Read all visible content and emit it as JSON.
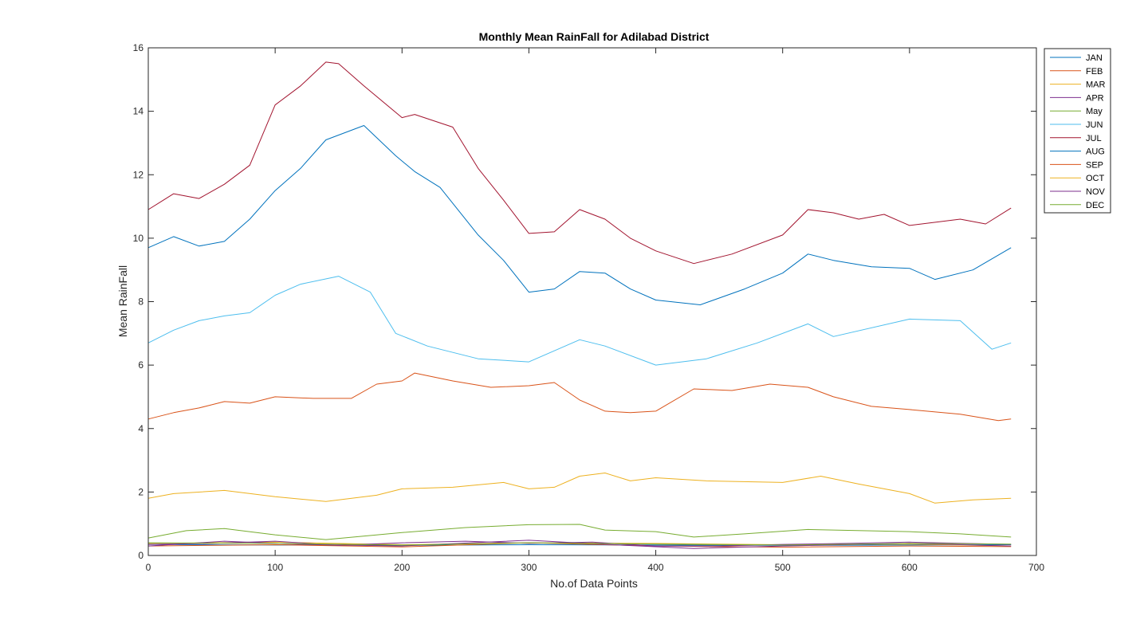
{
  "chart_data": {
    "type": "line",
    "title": "Monthly Mean RainFall  for Adilabad District",
    "xlabel": "No.of Data Points",
    "ylabel": "Mean RainFall",
    "xlim": [
      0,
      700
    ],
    "ylim": [
      0,
      16
    ],
    "xticks": [
      0,
      100,
      200,
      300,
      400,
      500,
      600,
      700
    ],
    "yticks": [
      0,
      2,
      4,
      6,
      8,
      10,
      12,
      14,
      16
    ],
    "grid": false,
    "legend": "outside-top-right",
    "series": [
      {
        "name": "JAN",
        "color": "#0072BD",
        "x": [
          0,
          100,
          200,
          300,
          400,
          500,
          600,
          680
        ],
        "y": [
          0.35,
          0.33,
          0.32,
          0.34,
          0.33,
          0.32,
          0.33,
          0.34
        ]
      },
      {
        "name": "FEB",
        "color": "#D95319",
        "x": [
          0,
          100,
          200,
          300,
          400,
          500,
          600,
          680
        ],
        "y": [
          0.3,
          0.34,
          0.27,
          0.4,
          0.3,
          0.26,
          0.3,
          0.28
        ]
      },
      {
        "name": "MAR",
        "color": "#EDB120",
        "x": [
          0,
          100,
          200,
          300,
          400,
          500,
          600,
          680
        ],
        "y": [
          0.38,
          0.42,
          0.34,
          0.4,
          0.38,
          0.34,
          0.36,
          0.3
        ]
      },
      {
        "name": "APR",
        "color": "#7E2F8E",
        "x": [
          0,
          60,
          120,
          200,
          300,
          360,
          430,
          500,
          600,
          680
        ],
        "y": [
          0.3,
          0.45,
          0.35,
          0.3,
          0.48,
          0.35,
          0.22,
          0.3,
          0.38,
          0.3
        ]
      },
      {
        "name": "May",
        "color": "#77AC30",
        "x": [
          0,
          30,
          60,
          100,
          140,
          200,
          250,
          300,
          340,
          360,
          400,
          430,
          470,
          520,
          600,
          640,
          680
        ],
        "y": [
          0.55,
          0.78,
          0.85,
          0.65,
          0.5,
          0.72,
          0.88,
          0.97,
          0.98,
          0.8,
          0.75,
          0.58,
          0.68,
          0.82,
          0.75,
          0.68,
          0.58
        ]
      },
      {
        "name": "JUN",
        "color": "#4DBEEE",
        "x": [
          0,
          20,
          40,
          60,
          80,
          100,
          120,
          150,
          175,
          195,
          220,
          260,
          300,
          340,
          360,
          400,
          440,
          480,
          520,
          540,
          600,
          640,
          665,
          680
        ],
        "y": [
          6.7,
          7.1,
          7.4,
          7.55,
          7.65,
          8.2,
          8.55,
          8.8,
          8.3,
          7.0,
          6.6,
          6.2,
          6.1,
          6.8,
          6.6,
          6.0,
          6.2,
          6.7,
          7.3,
          6.9,
          7.45,
          7.4,
          6.5,
          6.7
        ]
      },
      {
        "name": "JUL",
        "color": "#A2142F",
        "x": [
          0,
          20,
          40,
          60,
          80,
          100,
          120,
          140,
          150,
          170,
          200,
          210,
          240,
          260,
          280,
          300,
          320,
          340,
          360,
          380,
          400,
          430,
          460,
          500,
          520,
          540,
          560,
          580,
          600,
          640,
          660,
          680
        ],
        "y": [
          10.9,
          11.4,
          11.25,
          11.7,
          12.3,
          14.2,
          14.8,
          15.55,
          15.5,
          14.8,
          13.8,
          13.9,
          13.5,
          12.2,
          11.2,
          10.15,
          10.2,
          10.9,
          10.6,
          10.0,
          9.6,
          9.2,
          9.5,
          10.1,
          10.9,
          10.8,
          10.6,
          10.75,
          10.4,
          10.6,
          10.45,
          10.95
        ]
      },
      {
        "name": "AUG",
        "color": "#0072BD",
        "x": [
          0,
          20,
          40,
          60,
          80,
          100,
          120,
          140,
          170,
          195,
          210,
          230,
          260,
          280,
          300,
          320,
          340,
          360,
          380,
          400,
          435,
          470,
          500,
          520,
          540,
          570,
          600,
          620,
          650,
          680
        ],
        "y": [
          9.7,
          10.05,
          9.75,
          9.9,
          10.6,
          11.5,
          12.2,
          13.1,
          13.55,
          12.6,
          12.1,
          11.6,
          10.1,
          9.3,
          8.3,
          8.4,
          8.95,
          8.9,
          8.4,
          8.05,
          7.9,
          8.4,
          8.9,
          9.5,
          9.3,
          9.1,
          9.05,
          8.7,
          9.0,
          9.7
        ]
      },
      {
        "name": "SEP",
        "color": "#D95319",
        "x": [
          0,
          20,
          40,
          60,
          80,
          100,
          130,
          160,
          180,
          200,
          210,
          240,
          270,
          300,
          320,
          340,
          360,
          380,
          400,
          430,
          460,
          490,
          520,
          540,
          570,
          600,
          640,
          670,
          680
        ],
        "y": [
          4.3,
          4.5,
          4.65,
          4.85,
          4.8,
          5.0,
          4.95,
          4.95,
          5.4,
          5.5,
          5.75,
          5.5,
          5.3,
          5.35,
          5.45,
          4.9,
          4.55,
          4.5,
          4.55,
          5.25,
          5.2,
          5.4,
          5.3,
          5.0,
          4.7,
          4.6,
          4.45,
          4.25,
          4.3
        ]
      },
      {
        "name": "OCT",
        "color": "#EDB120",
        "x": [
          0,
          20,
          60,
          100,
          140,
          180,
          200,
          240,
          280,
          300,
          320,
          340,
          360,
          380,
          400,
          440,
          500,
          530,
          560,
          600,
          620,
          650,
          680
        ],
        "y": [
          1.8,
          1.95,
          2.05,
          1.85,
          1.7,
          1.9,
          2.1,
          2.15,
          2.3,
          2.1,
          2.15,
          2.5,
          2.6,
          2.35,
          2.45,
          2.35,
          2.3,
          2.5,
          2.25,
          1.95,
          1.65,
          1.75,
          1.8
        ]
      },
      {
        "name": "NOV",
        "color": "#7E2F8E",
        "x": [
          0,
          50,
          100,
          150,
          200,
          250,
          300,
          350,
          400,
          450,
          500,
          550,
          600,
          680
        ],
        "y": [
          0.35,
          0.38,
          0.45,
          0.32,
          0.4,
          0.45,
          0.38,
          0.42,
          0.3,
          0.3,
          0.35,
          0.38,
          0.42,
          0.35
        ]
      },
      {
        "name": "DEC",
        "color": "#77AC30",
        "x": [
          0,
          100,
          200,
          300,
          400,
          500,
          600,
          680
        ],
        "y": [
          0.4,
          0.38,
          0.33,
          0.4,
          0.36,
          0.33,
          0.38,
          0.36
        ]
      }
    ]
  }
}
